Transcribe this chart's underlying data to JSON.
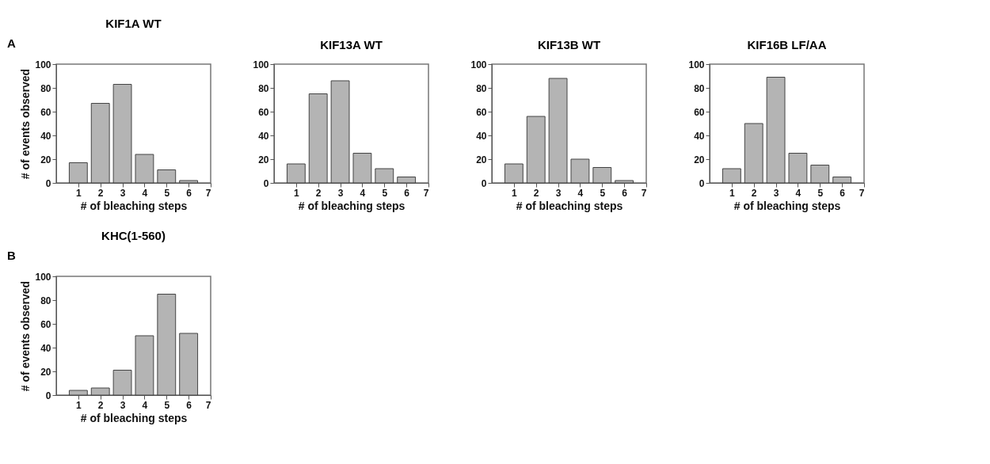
{
  "chart_data": [
    {
      "type": "bar",
      "title": "KIF1A WT",
      "xlabel": "# of bleaching steps",
      "ylabel": "# of events observed",
      "annotations": [
        "A"
      ],
      "x": [
        1,
        2,
        3,
        4,
        5,
        6
      ],
      "values": [
        17,
        67,
        83,
        24,
        11,
        2
      ],
      "color": "#b4b4b4",
      "xlim": [
        0,
        7
      ],
      "xticks": [
        1,
        2,
        3,
        4,
        5,
        6,
        7
      ],
      "ylim": [
        0,
        100
      ],
      "yticks": [
        0,
        20,
        40,
        60,
        80,
        100
      ]
    },
    {
      "type": "bar",
      "title": "KIF13A WT",
      "xlabel": "# of bleaching steps",
      "x": [
        1,
        2,
        3,
        4,
        5,
        6
      ],
      "values": [
        16,
        75,
        86,
        25,
        12,
        5
      ],
      "color": "#b4b4b4",
      "xlim": [
        0,
        7
      ],
      "xticks": [
        1,
        2,
        3,
        4,
        5,
        6,
        7
      ],
      "ylim": [
        0,
        100
      ],
      "yticks": [
        0,
        20,
        40,
        60,
        80,
        100
      ]
    },
    {
      "type": "bar",
      "title": "KIF13B WT",
      "xlabel": "# of bleaching steps",
      "x": [
        1,
        2,
        3,
        4,
        5,
        6
      ],
      "values": [
        16,
        56,
        88,
        20,
        13,
        2
      ],
      "color": "#b4b4b4",
      "xlim": [
        0,
        7
      ],
      "xticks": [
        1,
        2,
        3,
        4,
        5,
        6,
        7
      ],
      "ylim": [
        0,
        100
      ],
      "yticks": [
        0,
        20,
        40,
        60,
        80,
        100
      ]
    },
    {
      "type": "bar",
      "title": "KIF16B LF/AA",
      "xlabel": "# of bleaching steps",
      "x": [
        1,
        2,
        3,
        4,
        5,
        6
      ],
      "values": [
        12,
        50,
        89,
        25,
        15,
        5
      ],
      "color": "#b4b4b4",
      "xlim": [
        0,
        7
      ],
      "xticks": [
        1,
        2,
        3,
        4,
        5,
        6,
        7
      ],
      "ylim": [
        0,
        100
      ],
      "yticks": [
        0,
        20,
        40,
        60,
        80,
        100
      ]
    },
    {
      "type": "bar",
      "title": "KHC(1-560)",
      "xlabel": "# of bleaching steps",
      "ylabel": "# of events observed",
      "annotations": [
        "B"
      ],
      "x": [
        1,
        2,
        3,
        4,
        5,
        6
      ],
      "values": [
        4,
        6,
        21,
        50,
        85,
        52
      ],
      "color": "#b4b4b4",
      "xlim": [
        0,
        7
      ],
      "xticks": [
        1,
        2,
        3,
        4,
        5,
        6,
        7
      ],
      "ylim": [
        0,
        100
      ],
      "yticks": [
        0,
        20,
        40,
        60,
        80,
        100
      ]
    }
  ]
}
